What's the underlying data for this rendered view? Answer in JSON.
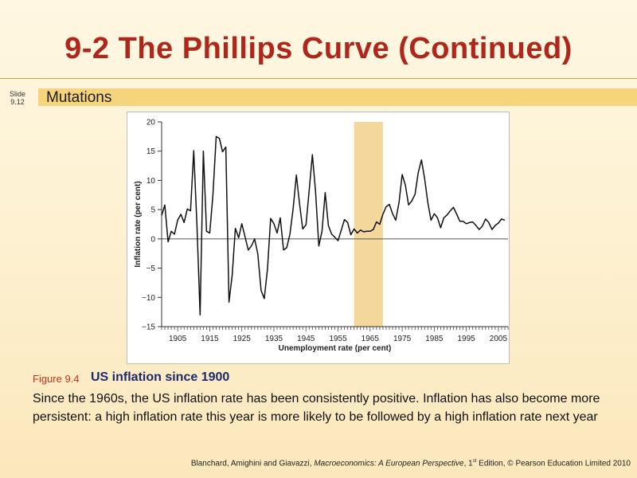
{
  "slide": {
    "title": "9-2  The Phillips Curve (Continued)",
    "slide_label": "Slide",
    "slide_number": "9.12",
    "subtitle": "Mutations"
  },
  "figure": {
    "label": "Figure 9.4",
    "title": "US inflation since 1900",
    "caption": "Since the 1960s, the US inflation rate has been consistently positive. Inflation has also become more persistent: a high inflation rate this year is more likely to be followed by a high inflation rate next year"
  },
  "footer": {
    "authors": "Blanchard, Amighini and Giavazzi, ",
    "book": "Macroeconomics: A European Perspective",
    "edition_pre": ", 1",
    "edition_sup": "st",
    "edition_post": " Edition, © Pearson Education Limited 2010"
  },
  "chart_data": {
    "type": "line",
    "title": "",
    "xlabel": "Unemployment rate (per cent)",
    "ylabel": "Inflation rate (per cent)",
    "xlim": [
      1900,
      2008
    ],
    "ylim": [
      -15,
      20
    ],
    "xticks": [
      1905,
      1915,
      1925,
      1935,
      1945,
      1955,
      1965,
      1975,
      1985,
      1995,
      2005
    ],
    "yticks": [
      -15,
      -10,
      -5,
      0,
      5,
      10,
      15,
      20
    ],
    "ytick_labels": [
      "−15",
      "−10",
      "−5",
      "0",
      "5",
      "10",
      "15",
      "20"
    ],
    "zero_line": true,
    "shaded_region": [
      1960,
      1969
    ],
    "colors": {
      "line": "#111111",
      "shade": "#f3d79b"
    },
    "series": [
      {
        "name": "US inflation",
        "x": [
          1900,
          1901,
          1902,
          1903,
          1904,
          1905,
          1906,
          1907,
          1908,
          1909,
          1910,
          1911,
          1912,
          1913,
          1914,
          1915,
          1916,
          1917,
          1918,
          1919,
          1920,
          1921,
          1922,
          1923,
          1924,
          1925,
          1926,
          1927,
          1928,
          1929,
          1930,
          1931,
          1932,
          1933,
          1934,
          1935,
          1936,
          1937,
          1938,
          1939,
          1940,
          1941,
          1942,
          1943,
          1944,
          1945,
          1946,
          1947,
          1948,
          1949,
          1950,
          1951,
          1952,
          1953,
          1954,
          1955,
          1956,
          1957,
          1958,
          1959,
          1960,
          1961,
          1962,
          1963,
          1964,
          1965,
          1966,
          1967,
          1968,
          1969,
          1970,
          1971,
          1972,
          1973,
          1974,
          1975,
          1976,
          1977,
          1978,
          1979,
          1980,
          1981,
          1982,
          1983,
          1984,
          1985,
          1986,
          1987,
          1988,
          1989,
          1990,
          1991,
          1992,
          1993,
          1994,
          1995,
          1996,
          1997,
          1998,
          1999,
          2000,
          2001,
          2002,
          2003,
          2004,
          2005,
          2006,
          2007
        ],
        "values": [
          4,
          5.8,
          -0.5,
          1.3,
          0.8,
          3.2,
          4.2,
          2.8,
          5.1,
          4.8,
          15.1,
          2.5,
          -13,
          15,
          1.3,
          1,
          7.5,
          17.5,
          17.2,
          14.9,
          15.7,
          -10.8,
          -6.2,
          1.8,
          0.2,
          2.6,
          0.4,
          -1.9,
          -1.2,
          0,
          -2.6,
          -8.8,
          -10.2,
          -5.2,
          3.5,
          2.6,
          1,
          3.6,
          -1.9,
          -1.5,
          0.8,
          5.1,
          10.9,
          6,
          1.7,
          2.4,
          8.3,
          14.4,
          8.1,
          -1.2,
          1.3,
          7.9,
          2.3,
          0.8,
          0.3,
          -0.3,
          1.5,
          3.3,
          2.8,
          0.7,
          1.7,
          1,
          1.5,
          1.2,
          1.3,
          1.3,
          1.6,
          2.9,
          2.5,
          4.2,
          5.5,
          5.9,
          4.3,
          3.2,
          6.2,
          11,
          9.2,
          5.8,
          6.5,
          7.6,
          11.3,
          13.5,
          10.3,
          6.2,
          3.2,
          4.3,
          3.6,
          1.9,
          3.6,
          4.1,
          4.8,
          5.4,
          4.2,
          3,
          3,
          2.6,
          2.8,
          2.9,
          2.3,
          1.6,
          2.2,
          3.4,
          2.8,
          1.6,
          2.3,
          2.7,
          3.4,
          3.2
        ]
      }
    ]
  }
}
